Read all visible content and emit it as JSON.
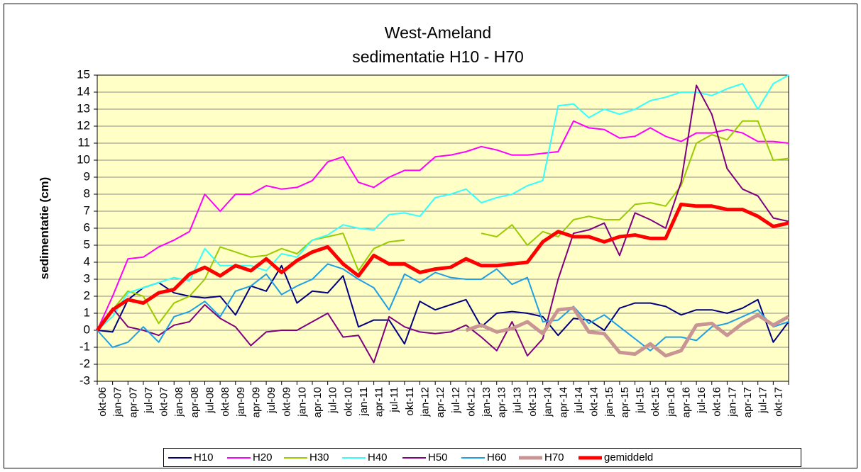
{
  "chart_data": {
    "type": "line",
    "title": [
      "West-Ameland",
      "sedimentatie H10 - H70"
    ],
    "y_label": "sedimentatie (cm)",
    "categories": [
      "okt-06",
      "jan-07",
      "apr-07",
      "jul-07",
      "okt-07",
      "jan-08",
      "apr-08",
      "jul-08",
      "okt-08",
      "jan-09",
      "apr-09",
      "jul-09",
      "okt-09",
      "jan-10",
      "apr-10",
      "jul-10",
      "okt-10",
      "jan-11",
      "apr-11",
      "jul-11",
      "okt-11",
      "jan-12",
      "apr-12",
      "jul-12",
      "okt-12",
      "jan-13",
      "apr-13",
      "jul-13",
      "okt-13",
      "jan-14",
      "apr-14",
      "jul-14",
      "okt-14",
      "jan-15",
      "apr-15",
      "jul-15",
      "okt-15",
      "jan-16",
      "apr-16",
      "jul-16",
      "okt-16",
      "jan-17",
      "apr-17",
      "jul-17",
      "okt-17",
      null
    ],
    "ylim": [
      -3,
      15
    ],
    "yticks": [
      -3,
      -2,
      -1,
      0,
      1,
      2,
      3,
      4,
      5,
      6,
      7,
      8,
      9,
      10,
      11,
      12,
      13,
      14,
      15
    ],
    "grid": true,
    "plot_color": "#ffffc6",
    "legend": "bottom",
    "series": [
      {
        "name": "H10",
        "color": "#000080",
        "values": [
          0,
          -0.1,
          1.8,
          2.5,
          2.8,
          2.2,
          2.0,
          1.9,
          2.0,
          0.9,
          2.6,
          2.3,
          3.8,
          1.6,
          2.3,
          2.2,
          3.2,
          0.2,
          0.6,
          0.6,
          -0.8,
          1.7,
          1.2,
          1.5,
          1.8,
          0.2,
          1.0,
          1.1,
          1.0,
          0.8,
          -0.3,
          0.7,
          0.6,
          0.0,
          1.3,
          1.6,
          1.6,
          1.4,
          0.9,
          1.2,
          1.2,
          1.0,
          1.3,
          1.8,
          -0.7,
          0.5
        ]
      },
      {
        "name": "H20",
        "color": "#ff00ff",
        "values": [
          0,
          2.0,
          4.2,
          4.3,
          4.9,
          5.3,
          5.8,
          8.0,
          7.0,
          8.0,
          8.0,
          8.5,
          8.3,
          8.4,
          8.8,
          9.9,
          10.2,
          8.7,
          8.4,
          9.0,
          9.4,
          9.4,
          10.2,
          10.3,
          10.5,
          10.8,
          10.6,
          10.3,
          10.3,
          10.4,
          10.5,
          12.3,
          11.9,
          11.8,
          11.3,
          11.4,
          11.9,
          11.4,
          11.1,
          11.6,
          11.6,
          11.8,
          11.6,
          11.1,
          11.1,
          11.0
        ]
      },
      {
        "name": "H30",
        "color": "#99cc00",
        "values": [
          0,
          1.2,
          2.3,
          2.0,
          0.4,
          1.6,
          2.0,
          3.0,
          4.9,
          4.6,
          4.3,
          4.4,
          4.8,
          4.5,
          5.3,
          5.5,
          5.7,
          3.5,
          4.8,
          5.2,
          5.3,
          null,
          null,
          null,
          null,
          5.7,
          5.5,
          6.2,
          5.0,
          5.8,
          5.5,
          6.5,
          6.7,
          6.5,
          6.5,
          7.4,
          7.5,
          7.3,
          8.5,
          11.0,
          11.5,
          11.2,
          12.3,
          12.3,
          10.0,
          10.1
        ]
      },
      {
        "name": "H40",
        "color": "#33ffff",
        "values": [
          0,
          0.8,
          2.2,
          2.5,
          2.8,
          3.1,
          2.9,
          4.8,
          3.8,
          3.8,
          3.8,
          3.5,
          4.5,
          4.3,
          5.3,
          5.6,
          6.2,
          6.0,
          5.9,
          6.8,
          6.9,
          6.7,
          7.8,
          8.0,
          8.3,
          7.5,
          7.8,
          8.0,
          8.5,
          8.8,
          13.2,
          13.3,
          12.5,
          13.0,
          12.7,
          13.0,
          13.5,
          13.7,
          14.0,
          14.0,
          13.8,
          14.2,
          14.5,
          13.0,
          14.5,
          15.0
        ]
      },
      {
        "name": "H50",
        "color": "#800080",
        "values": [
          0,
          1.3,
          0.2,
          0,
          -0.3,
          0.3,
          0.5,
          1.5,
          0.7,
          0.2,
          -0.9,
          -0.1,
          0,
          0,
          0.5,
          1.0,
          -0.4,
          -0.3,
          -1.9,
          0.8,
          0.2,
          -0.1,
          -0.2,
          -0.1,
          0.3,
          -0.4,
          -1.2,
          0.5,
          -1.5,
          -0.5,
          3.0,
          5.7,
          5.9,
          6.3,
          4.4,
          6.9,
          6.5,
          6.0,
          8.7,
          14.4,
          12.7,
          9.5,
          8.3,
          7.9,
          6.6,
          6.4
        ]
      },
      {
        "name": "H60",
        "color": "#1ea0e6",
        "values": [
          0,
          -1.0,
          -0.7,
          0.2,
          -0.7,
          0.8,
          1.1,
          1.7,
          0.8,
          2.3,
          2.6,
          3.3,
          2.1,
          2.6,
          3.0,
          3.9,
          3.6,
          3.0,
          2.5,
          1.2,
          3.3,
          2.8,
          3.4,
          3.1,
          3.0,
          3.0,
          3.6,
          2.7,
          3.1,
          0.5,
          0.6,
          1.4,
          0.4,
          0.9,
          0.2,
          -0.5,
          -1.2,
          -0.4,
          -0.4,
          -0.6,
          0.2,
          0.4,
          0.8,
          1.2,
          0.2,
          0.5
        ]
      },
      {
        "name": "H70",
        "color": "#c89494",
        "values": [
          null,
          null,
          null,
          null,
          null,
          null,
          null,
          null,
          null,
          null,
          null,
          null,
          null,
          null,
          null,
          null,
          null,
          null,
          null,
          null,
          null,
          null,
          null,
          null,
          0.0,
          0.3,
          -0.1,
          0.1,
          0.5,
          -0.2,
          1.2,
          1.3,
          -0.1,
          -0.2,
          -1.3,
          -1.4,
          -0.8,
          -1.5,
          -1.2,
          0.3,
          0.4,
          -0.3,
          0.4,
          0.9,
          0.3,
          0.8
        ]
      },
      {
        "name": "gemiddeld",
        "color": "#ff0000",
        "values": [
          0,
          1.2,
          1.8,
          1.6,
          2.2,
          2.4,
          3.3,
          3.7,
          3.2,
          3.8,
          3.5,
          4.2,
          3.4,
          4.1,
          4.6,
          4.9,
          3.9,
          3.2,
          4.4,
          3.9,
          3.9,
          3.4,
          3.6,
          3.7,
          4.2,
          3.8,
          3.8,
          3.9,
          4.0,
          5.2,
          5.8,
          5.5,
          5.5,
          5.2,
          5.5,
          5.6,
          5.4,
          5.4,
          7.4,
          7.3,
          7.3,
          7.1,
          7.1,
          6.7,
          6.1,
          6.3
        ]
      }
    ]
  }
}
